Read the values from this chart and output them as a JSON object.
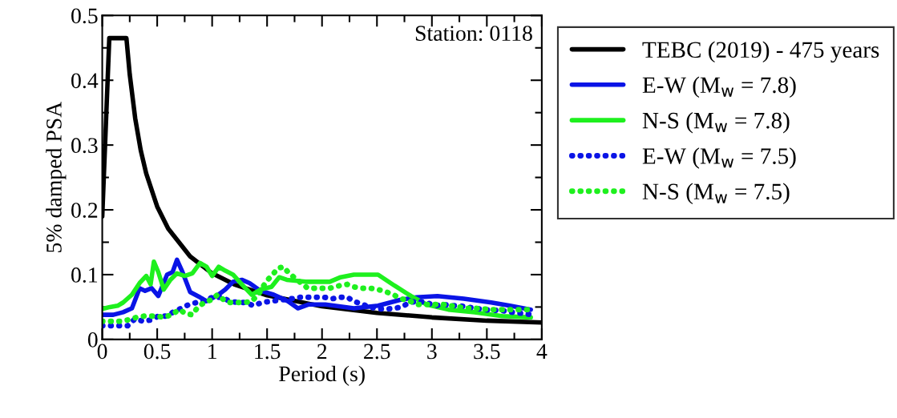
{
  "chart_data": {
    "type": "line",
    "xlabel": "Period (s)",
    "ylabel": "5% damped PSA",
    "annotations": [
      "Station: 0118"
    ],
    "xlim": [
      0,
      4
    ],
    "ylim": [
      0,
      0.5
    ],
    "xticks": [
      0,
      0.5,
      1,
      1.5,
      2,
      2.5,
      3,
      3.5,
      4
    ],
    "yticks": [
      0,
      0.1,
      0.2,
      0.3,
      0.4,
      0.5
    ],
    "grid": false,
    "legend": "right",
    "marker": "none",
    "series": [
      {
        "name": "TEBC (2019) - 475 years",
        "color": "#000000",
        "line_style": "solid",
        "x": [
          0,
          0.064,
          0.22,
          0.25,
          0.3,
          0.35,
          0.4,
          0.5,
          0.6,
          0.8,
          1.0,
          1.2,
          1.5,
          2,
          2.5,
          3,
          3.5,
          4
        ],
        "values": [
          0.19,
          0.465,
          0.465,
          0.409,
          0.341,
          0.292,
          0.256,
          0.205,
          0.171,
          0.128,
          0.102,
          0.085,
          0.068,
          0.051,
          0.041,
          0.034,
          0.029,
          0.026
        ]
      },
      {
        "name": "E-W (M$_{w}$ = 7.8)",
        "color": "#0a14e6",
        "line_style": "solid",
        "x": [
          0,
          0.1,
          0.19,
          0.27,
          0.34,
          0.39,
          0.45,
          0.51,
          0.59,
          0.64,
          0.68,
          0.73,
          0.8,
          0.89,
          0.95,
          1.04,
          1.12,
          1.19,
          1.27,
          1.34,
          1.44,
          1.56,
          1.69,
          1.78,
          1.88,
          2.03,
          2.29,
          2.51,
          2.71,
          2.86,
          3.05,
          3.29,
          3.54,
          3.71,
          3.9
        ],
        "values": [
          0.038,
          0.038,
          0.042,
          0.048,
          0.079,
          0.075,
          0.079,
          0.067,
          0.1,
          0.104,
          0.123,
          0.104,
          0.073,
          0.065,
          0.059,
          0.067,
          0.077,
          0.089,
          0.092,
          0.087,
          0.075,
          0.069,
          0.059,
          0.048,
          0.054,
          0.054,
          0.048,
          0.052,
          0.061,
          0.065,
          0.067,
          0.063,
          0.057,
          0.052,
          0.046
        ]
      },
      {
        "name": "N-S (M$_{w}$ = 7.8)",
        "color": "#1ef01e",
        "line_style": "solid",
        "x": [
          0,
          0.07,
          0.14,
          0.19,
          0.27,
          0.34,
          0.4,
          0.44,
          0.47,
          0.51,
          0.56,
          0.62,
          0.68,
          0.75,
          0.82,
          0.89,
          0.95,
          1.0,
          1.06,
          1.12,
          1.19,
          1.27,
          1.36,
          1.44,
          1.54,
          1.61,
          1.68,
          1.85,
          2.0,
          2.07,
          2.17,
          2.29,
          2.51,
          2.66,
          2.81,
          2.95,
          3.15,
          3.39,
          3.64,
          3.9
        ],
        "values": [
          0.047,
          0.05,
          0.052,
          0.057,
          0.069,
          0.087,
          0.098,
          0.085,
          0.12,
          0.104,
          0.077,
          0.092,
          0.102,
          0.098,
          0.102,
          0.118,
          0.112,
          0.098,
          0.112,
          0.106,
          0.1,
          0.085,
          0.069,
          0.077,
          0.081,
          0.096,
          0.092,
          0.089,
          0.089,
          0.089,
          0.096,
          0.1,
          0.1,
          0.083,
          0.067,
          0.054,
          0.046,
          0.042,
          0.036,
          0.034
        ]
      },
      {
        "name": "E-W (M$_{w}$ = 7.5)",
        "color": "#0a14e6",
        "line_style": "dotted",
        "x": [
          0,
          0.09,
          0.16,
          0.23,
          0.3,
          0.37,
          0.44,
          0.51,
          0.59,
          0.66,
          0.72,
          0.79,
          0.86,
          0.93,
          1.0,
          1.09,
          1.16,
          1.23,
          1.3,
          1.38,
          1.45,
          1.73,
          1.8,
          1.87,
          1.95,
          2.02,
          2.1,
          2.17,
          2.23,
          2.29,
          2.37,
          2.44,
          2.51,
          2.59,
          2.66,
          2.72,
          2.8,
          2.87,
          2.95,
          3.03,
          3.1,
          3.18,
          3.25,
          3.32,
          3.4,
          3.47,
          3.55,
          3.62,
          3.69,
          3.77,
          3.84,
          3.91
        ],
        "values": [
          0.021,
          0.021,
          0.021,
          0.021,
          0.032,
          0.028,
          0.03,
          0.036,
          0.036,
          0.044,
          0.048,
          0.054,
          0.057,
          0.059,
          0.065,
          0.065,
          0.059,
          0.057,
          0.057,
          0.052,
          0.057,
          0.063,
          0.065,
          0.065,
          0.065,
          0.065,
          0.063,
          0.065,
          0.065,
          0.059,
          0.054,
          0.05,
          0.047,
          0.047,
          0.048,
          0.05,
          0.057,
          0.059,
          0.057,
          0.052,
          0.054,
          0.052,
          0.052,
          0.05,
          0.048,
          0.046,
          0.045,
          0.045,
          0.043,
          0.041,
          0.04,
          0.038
        ]
      },
      {
        "name": "N-S (M$_{w}$ = 7.5)",
        "color": "#1ef01e",
        "line_style": "dotted",
        "x": [
          0,
          0.09,
          0.16,
          0.23,
          0.31,
          0.38,
          0.44,
          0.5,
          0.56,
          0.63,
          0.7,
          0.76,
          0.82,
          0.87,
          0.93,
          0.99,
          1.05,
          1.09,
          1.15,
          1.23,
          1.3,
          1.36,
          1.42,
          1.49,
          1.55,
          1.6,
          1.65,
          1.7,
          1.87,
          1.95,
          2.0,
          2.07,
          2.16,
          2.23,
          2.29,
          2.37,
          2.44,
          2.51,
          2.59,
          2.66,
          2.72,
          2.8,
          2.87,
          2.95,
          3.02,
          3.1,
          3.17,
          3.25,
          3.32,
          3.4,
          3.47,
          3.55,
          3.62,
          3.69,
          3.77,
          3.84,
          3.91
        ],
        "values": [
          0.028,
          0.028,
          0.028,
          0.03,
          0.034,
          0.036,
          0.036,
          0.036,
          0.034,
          0.038,
          0.046,
          0.04,
          0.038,
          0.05,
          0.057,
          0.061,
          0.069,
          0.063,
          0.057,
          0.057,
          0.057,
          0.059,
          0.069,
          0.089,
          0.1,
          0.11,
          0.112,
          0.102,
          0.079,
          0.079,
          0.079,
          0.079,
          0.083,
          0.085,
          0.081,
          0.079,
          0.079,
          0.077,
          0.073,
          0.068,
          0.063,
          0.059,
          0.054,
          0.054,
          0.054,
          0.054,
          0.052,
          0.05,
          0.048,
          0.048,
          0.047,
          0.046,
          0.046,
          0.046,
          0.046,
          0.046,
          0.046
        ]
      }
    ]
  }
}
